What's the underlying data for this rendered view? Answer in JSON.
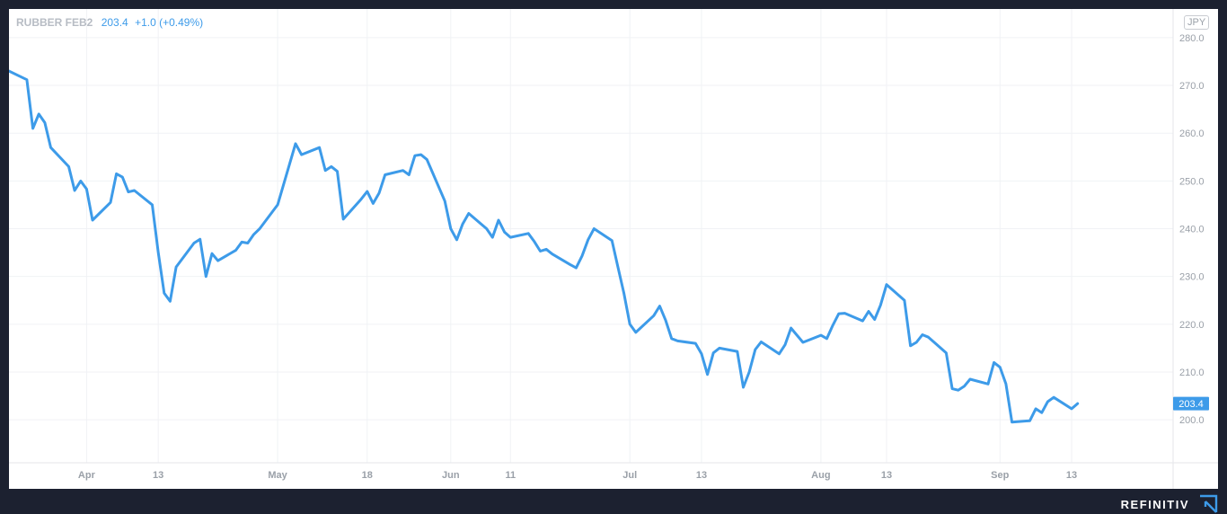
{
  "chart_data": {
    "type": "line",
    "legend": {
      "symbol": "RUBBER FEB2",
      "last": "203.4",
      "change": "+1.0 (+0.49%)"
    },
    "currency": "JPY",
    "last_price_label": "203.4",
    "yaxis": {
      "ticks": [
        200,
        210,
        220,
        230,
        240,
        250,
        260,
        270,
        280
      ],
      "tick_labels": [
        "200.0",
        "210.0",
        "220.0",
        "230.0",
        "240.0",
        "250.0",
        "260.0",
        "270.0",
        "280.0"
      ],
      "range": [
        191,
        286
      ]
    },
    "xaxis": {
      "range": [
        "2021-03-19",
        "2021-09-30"
      ],
      "ticks": [
        {
          "date": "2021-04-01",
          "label": "Apr"
        },
        {
          "date": "2021-04-13",
          "label": "13"
        },
        {
          "date": "2021-05-03",
          "label": "May"
        },
        {
          "date": "2021-05-18",
          "label": "18"
        },
        {
          "date": "2021-06-01",
          "label": "Jun"
        },
        {
          "date": "2021-06-11",
          "label": "11"
        },
        {
          "date": "2021-07-01",
          "label": "Jul"
        },
        {
          "date": "2021-07-13",
          "label": "13"
        },
        {
          "date": "2021-08-02",
          "label": "Aug"
        },
        {
          "date": "2021-08-13",
          "label": "13"
        },
        {
          "date": "2021-09-01",
          "label": "Sep"
        },
        {
          "date": "2021-09-13",
          "label": "13"
        }
      ]
    },
    "grid": true,
    "series": [
      {
        "color": "#3d9be9",
        "points": [
          [
            "2021-03-19",
            273.0
          ],
          [
            "2021-03-22",
            271.2
          ],
          [
            "2021-03-23",
            261.0
          ],
          [
            "2021-03-24",
            264.0
          ],
          [
            "2021-03-25",
            262.2
          ],
          [
            "2021-03-26",
            257.0
          ],
          [
            "2021-03-29",
            253.0
          ],
          [
            "2021-03-30",
            248.0
          ],
          [
            "2021-03-31",
            250.0
          ],
          [
            "2021-04-01",
            248.3
          ],
          [
            "2021-04-02",
            241.8
          ],
          [
            "2021-04-05",
            245.5
          ],
          [
            "2021-04-06",
            251.5
          ],
          [
            "2021-04-07",
            250.8
          ],
          [
            "2021-04-08",
            247.7
          ],
          [
            "2021-04-09",
            248.0
          ],
          [
            "2021-04-12",
            245.0
          ],
          [
            "2021-04-13",
            235.0
          ],
          [
            "2021-04-14",
            226.5
          ],
          [
            "2021-04-15",
            224.8
          ],
          [
            "2021-04-16",
            232.0
          ],
          [
            "2021-04-19",
            237.0
          ],
          [
            "2021-04-20",
            237.8
          ],
          [
            "2021-04-21",
            230.0
          ],
          [
            "2021-04-22",
            234.8
          ],
          [
            "2021-04-23",
            233.3
          ],
          [
            "2021-04-26",
            235.5
          ],
          [
            "2021-04-27",
            237.2
          ],
          [
            "2021-04-28",
            237.0
          ],
          [
            "2021-04-29",
            238.8
          ],
          [
            "2021-04-30",
            240.0
          ],
          [
            "2021-05-03",
            245.0
          ],
          [
            "2021-05-06",
            257.8
          ],
          [
            "2021-05-07",
            255.5
          ],
          [
            "2021-05-10",
            257.0
          ],
          [
            "2021-05-11",
            252.2
          ],
          [
            "2021-05-12",
            253.0
          ],
          [
            "2021-05-13",
            252.0
          ],
          [
            "2021-05-14",
            242.0
          ],
          [
            "2021-05-17",
            246.2
          ],
          [
            "2021-05-18",
            247.8
          ],
          [
            "2021-05-19",
            245.3
          ],
          [
            "2021-05-20",
            247.5
          ],
          [
            "2021-05-21",
            251.3
          ],
          [
            "2021-05-24",
            252.2
          ],
          [
            "2021-05-25",
            251.3
          ],
          [
            "2021-05-26",
            255.3
          ],
          [
            "2021-05-27",
            255.5
          ],
          [
            "2021-05-28",
            254.5
          ],
          [
            "2021-05-31",
            245.8
          ],
          [
            "2021-06-01",
            240.0
          ],
          [
            "2021-06-02",
            237.7
          ],
          [
            "2021-06-03",
            241.0
          ],
          [
            "2021-06-04",
            243.2
          ],
          [
            "2021-06-07",
            240.0
          ],
          [
            "2021-06-08",
            238.2
          ],
          [
            "2021-06-09",
            241.8
          ],
          [
            "2021-06-10",
            239.3
          ],
          [
            "2021-06-11",
            238.2
          ],
          [
            "2021-06-14",
            239.0
          ],
          [
            "2021-06-15",
            237.3
          ],
          [
            "2021-06-16",
            235.3
          ],
          [
            "2021-06-17",
            235.7
          ],
          [
            "2021-06-18",
            234.7
          ],
          [
            "2021-06-21",
            232.5
          ],
          [
            "2021-06-22",
            231.8
          ],
          [
            "2021-06-23",
            234.3
          ],
          [
            "2021-06-24",
            237.7
          ],
          [
            "2021-06-25",
            240.0
          ],
          [
            "2021-06-28",
            237.5
          ],
          [
            "2021-06-29",
            232.0
          ],
          [
            "2021-06-30",
            226.5
          ],
          [
            "2021-07-01",
            220.0
          ],
          [
            "2021-07-02",
            218.3
          ],
          [
            "2021-07-05",
            221.8
          ],
          [
            "2021-07-06",
            223.8
          ],
          [
            "2021-07-07",
            220.8
          ],
          [
            "2021-07-08",
            217.0
          ],
          [
            "2021-07-09",
            216.5
          ],
          [
            "2021-07-12",
            216.0
          ],
          [
            "2021-07-13",
            213.8
          ],
          [
            "2021-07-14",
            209.5
          ],
          [
            "2021-07-15",
            214.0
          ],
          [
            "2021-07-16",
            215.0
          ],
          [
            "2021-07-19",
            214.3
          ],
          [
            "2021-07-20",
            206.8
          ],
          [
            "2021-07-21",
            210.0
          ],
          [
            "2021-07-22",
            214.7
          ],
          [
            "2021-07-23",
            216.3
          ],
          [
            "2021-07-26",
            213.8
          ],
          [
            "2021-07-27",
            215.7
          ],
          [
            "2021-07-28",
            219.2
          ],
          [
            "2021-07-29",
            217.7
          ],
          [
            "2021-07-30",
            216.2
          ],
          [
            "2021-08-02",
            217.7
          ],
          [
            "2021-08-03",
            217.0
          ],
          [
            "2021-08-04",
            219.8
          ],
          [
            "2021-08-05",
            222.2
          ],
          [
            "2021-08-06",
            222.3
          ],
          [
            "2021-08-09",
            220.7
          ],
          [
            "2021-08-10",
            222.7
          ],
          [
            "2021-08-11",
            221.0
          ],
          [
            "2021-08-12",
            224.0
          ],
          [
            "2021-08-13",
            228.3
          ],
          [
            "2021-08-16",
            225.0
          ],
          [
            "2021-08-17",
            215.5
          ],
          [
            "2021-08-18",
            216.2
          ],
          [
            "2021-08-19",
            217.8
          ],
          [
            "2021-08-20",
            217.3
          ],
          [
            "2021-08-23",
            214.0
          ],
          [
            "2021-08-24",
            206.5
          ],
          [
            "2021-08-25",
            206.2
          ],
          [
            "2021-08-26",
            207.0
          ],
          [
            "2021-08-27",
            208.5
          ],
          [
            "2021-08-30",
            207.5
          ],
          [
            "2021-08-31",
            212.0
          ],
          [
            "2021-09-01",
            211.0
          ],
          [
            "2021-09-02",
            207.5
          ],
          [
            "2021-09-03",
            199.5
          ],
          [
            "2021-09-06",
            199.8
          ],
          [
            "2021-09-07",
            202.3
          ],
          [
            "2021-09-08",
            201.5
          ],
          [
            "2021-09-09",
            203.8
          ],
          [
            "2021-09-10",
            204.7
          ],
          [
            "2021-09-13",
            202.3
          ],
          [
            "2021-09-14",
            203.4
          ]
        ]
      }
    ]
  },
  "footer": {
    "brand": "REFINITIV",
    "brand_color": "#ffffff",
    "background_color": "#1c2130",
    "logo_icon": "refinitiv-logo-icon",
    "logo_color": "#3d9be9"
  }
}
